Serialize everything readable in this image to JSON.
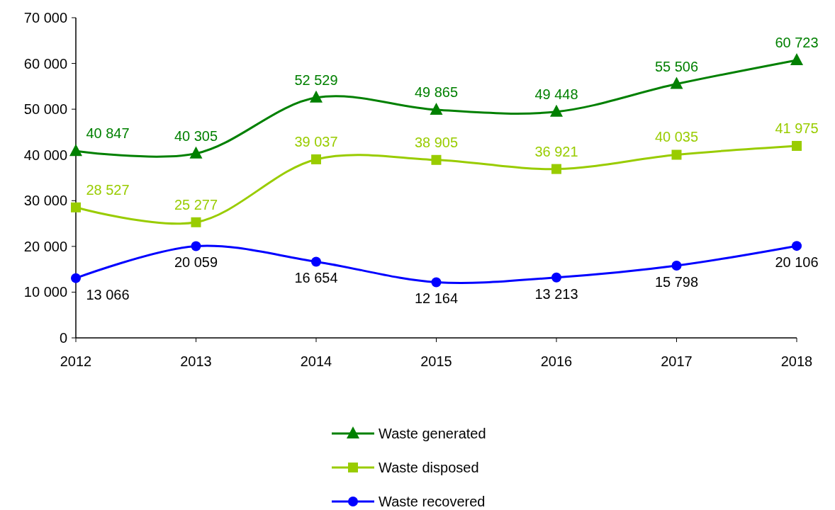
{
  "chart_data": {
    "type": "line",
    "categories": [
      "2012",
      "2013",
      "2014",
      "2015",
      "2016",
      "2017",
      "2018"
    ],
    "series": [
      {
        "name": "Waste generated",
        "color": "#008000",
        "marker": "triangle",
        "values": [
          40847,
          40305,
          52529,
          49865,
          49448,
          55506,
          60723
        ],
        "value_labels": [
          "40 847",
          "40 305",
          "52 529",
          "49 865",
          "49 448",
          "55 506",
          "60 723"
        ]
      },
      {
        "name": "Waste disposed",
        "color": "#99cc00",
        "marker": "square",
        "values": [
          28527,
          25277,
          39037,
          38905,
          36921,
          40035,
          41975
        ],
        "value_labels": [
          "28 527",
          "25 277",
          "39 037",
          "38 905",
          "36 921",
          "40 035",
          "41 975"
        ]
      },
      {
        "name": "Waste recovered",
        "color": "#0000ff",
        "marker": "circle",
        "values": [
          13066,
          20059,
          16654,
          12164,
          13213,
          15798,
          20106
        ],
        "value_labels": [
          "13 066",
          "20 059",
          "16 654",
          "12 164",
          "13 213",
          "15 798",
          "20 106"
        ]
      }
    ],
    "ylim": [
      0,
      70000
    ],
    "yticks": [
      {
        "value": 0,
        "label": "0"
      },
      {
        "value": 10000,
        "label": "10 000"
      },
      {
        "value": 20000,
        "label": "20 000"
      },
      {
        "value": 30000,
        "label": "30 000"
      },
      {
        "value": 40000,
        "label": "40 000"
      },
      {
        "value": 50000,
        "label": "50 000"
      },
      {
        "value": 60000,
        "label": "60 000"
      },
      {
        "value": 70000,
        "label": "70 000"
      }
    ],
    "grid": false,
    "legend": "bottom",
    "line_style": "solid"
  }
}
